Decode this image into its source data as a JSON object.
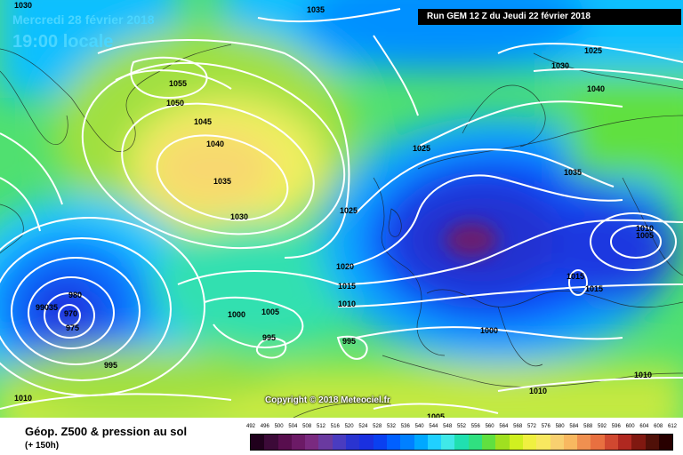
{
  "header": {
    "date": "Mercredi 28 février 2018",
    "time": "19:00 locale",
    "run": "Run GEM 12 Z du Jeudi 22 février 2018"
  },
  "copyright": "Copyright © 2018 Meteociel.fr",
  "legend": {
    "title": "Géop. Z500 & pression au sol",
    "subtitle": "(+ 150h)",
    "scale": [
      "492",
      "496",
      "500",
      "504",
      "508",
      "512",
      "516",
      "520",
      "524",
      "528",
      "532",
      "536",
      "540",
      "544",
      "548",
      "552",
      "556",
      "560",
      "564",
      "568",
      "572",
      "576",
      "580",
      "584",
      "588",
      "592",
      "596",
      "600",
      "604",
      "608",
      "612"
    ],
    "colors": [
      "#20001c",
      "#3c0a38",
      "#580e4e",
      "#6c1a66",
      "#7a2a80",
      "#6a3aa0",
      "#4a3cc0",
      "#2a34d0",
      "#1a30e0",
      "#0a40f0",
      "#0060ff",
      "#0080ff",
      "#00a8ff",
      "#20d0ff",
      "#40e8e8",
      "#20e0b0",
      "#30e080",
      "#60e040",
      "#a0e020",
      "#d0f020",
      "#f0f040",
      "#f8e860",
      "#f8d070",
      "#f8b860",
      "#f09050",
      "#e87040",
      "#d04830",
      "#b02820",
      "#801810",
      "#501008",
      "#280000"
    ]
  },
  "isobar_labels": [
    "1030",
    "1035",
    "1025",
    "1030",
    "1040",
    "1055",
    "1050",
    "1045",
    "1040",
    "1035",
    "1030",
    "1025",
    "1025",
    "1035",
    "1020",
    "1015",
    "1010",
    "1010",
    "1005",
    "1015",
    "1015",
    "980",
    "99035",
    "970",
    "975",
    "1000",
    "1005",
    "995",
    "995",
    "1000",
    "995",
    "1010",
    "1010",
    "1010",
    "1005"
  ]
}
